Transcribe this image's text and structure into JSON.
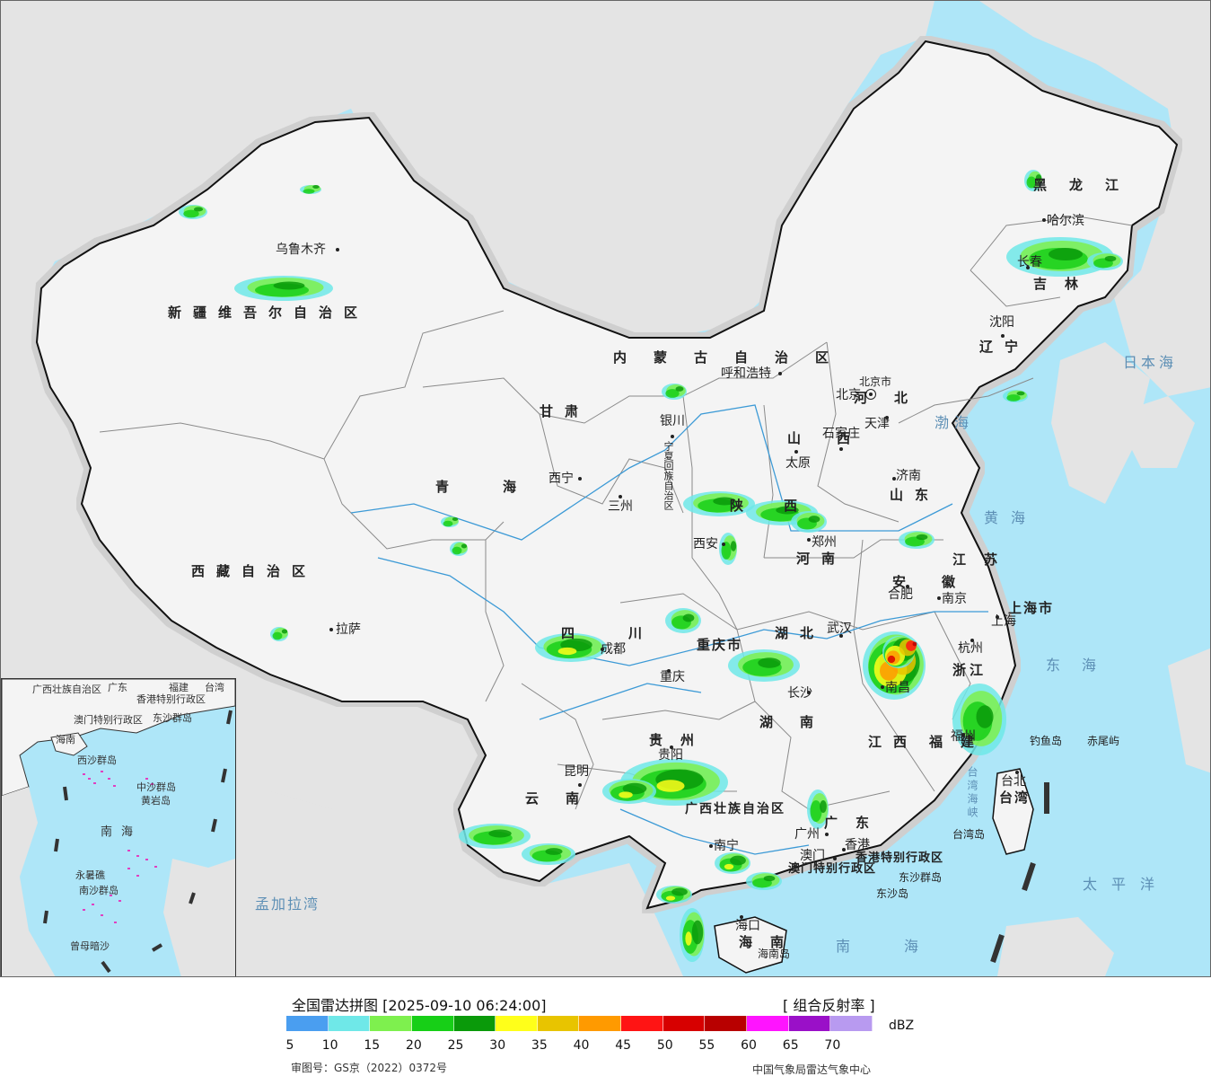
{
  "colors": {
    "ocean": "#aee6f8",
    "land_neighbor": "#e4e4e4",
    "land_china": "#f4f4f4",
    "border_national": "#111111",
    "border_province": "#8a8a8a",
    "river": "#3c9ad6"
  },
  "map": {
    "cities": [
      {
        "id": "urumqi",
        "name": "乌鲁木齐"
      },
      {
        "id": "lhasa",
        "name": "拉萨"
      },
      {
        "id": "xining",
        "name": "西宁"
      },
      {
        "id": "lanzhou",
        "name": "三州"
      },
      {
        "id": "yinchuan",
        "name": "银川"
      },
      {
        "id": "hohhot",
        "name": "呼和浩特"
      },
      {
        "id": "beijing",
        "name": "北京"
      },
      {
        "id": "tianjin",
        "name": "天津"
      },
      {
        "id": "shijiazhuang",
        "name": "石家庄"
      },
      {
        "id": "taiyuan",
        "name": "太原"
      },
      {
        "id": "jinan",
        "name": "济南"
      },
      {
        "id": "zhengzhou",
        "name": "郑州"
      },
      {
        "id": "xian",
        "name": "西安"
      },
      {
        "id": "chengdu",
        "name": "成都"
      },
      {
        "id": "chongqing",
        "name": "重庆"
      },
      {
        "id": "wuhan",
        "name": "武汉"
      },
      {
        "id": "hefei",
        "name": "合肥"
      },
      {
        "id": "nanjing",
        "name": "南京"
      },
      {
        "id": "shanghai",
        "name": "上海"
      },
      {
        "id": "hangzhou",
        "name": "杭州"
      },
      {
        "id": "nanchang",
        "name": "南昌"
      },
      {
        "id": "changsha",
        "name": "长沙"
      },
      {
        "id": "guiyang",
        "name": "贵阳"
      },
      {
        "id": "kunming",
        "name": "昆明"
      },
      {
        "id": "nanning",
        "name": "南宁"
      },
      {
        "id": "guangzhou",
        "name": "广州"
      },
      {
        "id": "hongkong",
        "name": "香港"
      },
      {
        "id": "macau",
        "name": "澳门"
      },
      {
        "id": "fuzhou",
        "name": "福州"
      },
      {
        "id": "taipei",
        "name": "台北"
      },
      {
        "id": "haikou",
        "name": "海口"
      },
      {
        "id": "harbin",
        "name": "哈尔滨"
      },
      {
        "id": "changchun",
        "name": "长春"
      },
      {
        "id": "shenyang",
        "name": "沈阳"
      }
    ],
    "provinces": [
      {
        "id": "xinjiang",
        "name": "新疆维吾尔自治区"
      },
      {
        "id": "xizang",
        "name": "西藏自治区"
      },
      {
        "id": "qinghai",
        "name": "青海"
      },
      {
        "id": "gansu",
        "name": "甘肃"
      },
      {
        "id": "neimenggu",
        "name": "内蒙古自治区"
      },
      {
        "id": "heilongjiang",
        "name": "黑龙江"
      },
      {
        "id": "jilin",
        "name": "吉林"
      },
      {
        "id": "liaoning",
        "name": "辽宁"
      },
      {
        "id": "hebei",
        "name": "河北"
      },
      {
        "id": "shanxi",
        "name": "山西"
      },
      {
        "id": "shandong",
        "name": "山东"
      },
      {
        "id": "henan",
        "name": "河南"
      },
      {
        "id": "shaanxi",
        "name": "陕西"
      },
      {
        "id": "sichuan",
        "name": "四川"
      },
      {
        "id": "chongqing_shi",
        "name": "重庆市"
      },
      {
        "id": "hubei",
        "name": "湖北"
      },
      {
        "id": "hunan",
        "name": "湖南"
      },
      {
        "id": "jiangxi",
        "name": "江西"
      },
      {
        "id": "anhui",
        "name": "安徽"
      },
      {
        "id": "jiangsu",
        "name": "江苏"
      },
      {
        "id": "zhejiang",
        "name": "浙江"
      },
      {
        "id": "fujian",
        "name": "福建"
      },
      {
        "id": "guizhou",
        "name": "贵州"
      },
      {
        "id": "yunnan",
        "name": "云南"
      },
      {
        "id": "guangxi",
        "name": "广西壮族自治区"
      },
      {
        "id": "guangdong",
        "name": "广东"
      },
      {
        "id": "hainan",
        "name": "海南"
      },
      {
        "id": "taiwan",
        "name": "台湾"
      },
      {
        "id": "shanghai_shi",
        "name": "上海市"
      },
      {
        "id": "beijing_shi",
        "name": "北京市"
      },
      {
        "id": "hk_sar",
        "name": "香港特别行政区"
      },
      {
        "id": "macau_sar",
        "name": "澳门特别行政区"
      },
      {
        "id": "ningxia",
        "name": "宁夏回族自治区"
      }
    ],
    "seas": [
      {
        "id": "bohai",
        "name": "渤海"
      },
      {
        "id": "huanghai",
        "name": "黄海"
      },
      {
        "id": "donghai",
        "name": "东海"
      },
      {
        "id": "nanhai",
        "name": "南海"
      },
      {
        "id": "taipingyang",
        "name": "太平洋"
      },
      {
        "id": "ribenhai",
        "name": "日本海"
      },
      {
        "id": "mengjialawan",
        "name": "孟加拉湾"
      },
      {
        "id": "taiwan_strait",
        "name": "台湾海峡"
      }
    ],
    "islands": [
      {
        "id": "diaoyu",
        "name": "钓鱼岛"
      },
      {
        "id": "chiwei",
        "name": "赤尾屿"
      },
      {
        "id": "dongsha_group",
        "name": "东沙群岛"
      },
      {
        "id": "dongsha",
        "name": "东沙岛"
      },
      {
        "id": "taiwan_dao",
        "name": "台湾岛"
      },
      {
        "id": "hainan_dao",
        "name": "海南岛"
      }
    ]
  },
  "inset": {
    "labels": [
      {
        "id": "guangxi",
        "name": "广西壮族自治区"
      },
      {
        "id": "guangdong",
        "name": "广东"
      },
      {
        "id": "fujian",
        "name": "福建"
      },
      {
        "id": "taiwan",
        "name": "台湾"
      },
      {
        "id": "hk",
        "name": "香港特别行政区"
      },
      {
        "id": "macau",
        "name": "澳门特别行政区"
      },
      {
        "id": "dongsha",
        "name": "东沙群岛"
      },
      {
        "id": "hainan",
        "name": "海南"
      },
      {
        "id": "xisha",
        "name": "西沙群岛"
      },
      {
        "id": "zhongsha",
        "name": "中沙群岛"
      },
      {
        "id": "huangyan",
        "name": "黄岩岛"
      },
      {
        "id": "nanhai",
        "name": "南海"
      },
      {
        "id": "nansha",
        "name": "南沙群岛"
      },
      {
        "id": "yongshu",
        "name": "永暑礁"
      },
      {
        "id": "zengmu",
        "name": "曾母暗沙"
      }
    ]
  },
  "legend": {
    "title": "全国雷达拼图 [2025-09-10 06:24:00]",
    "product": "[ 组合反射率 ]",
    "unit": "dBZ",
    "bins": [
      "#4a9ef0",
      "#6fe8e8",
      "#7ef04e",
      "#17cf17",
      "#0a9a0a",
      "#ffff1a",
      "#e8c400",
      "#ff9a00",
      "#ff1414",
      "#d70000",
      "#b80000",
      "#ff14ff",
      "#9a10c8",
      "#b89af0"
    ],
    "ticks": [
      "5",
      "10",
      "15",
      "20",
      "25",
      "30",
      "35",
      "40",
      "45",
      "50",
      "55",
      "60",
      "65",
      "70"
    ]
  },
  "footer": {
    "approval": "审图号：GS京（2022）0372号",
    "agency": "中国气象局雷达气象中心"
  }
}
